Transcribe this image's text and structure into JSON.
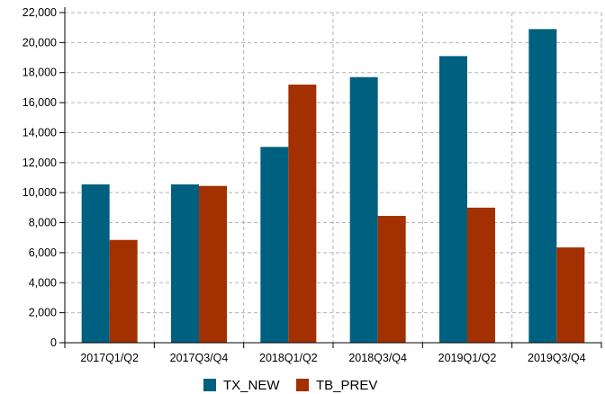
{
  "chart_data": {
    "type": "bar",
    "categories": [
      "2017Q1/Q2",
      "2017Q3/Q4",
      "2018Q1/Q2",
      "2018Q3/Q4",
      "2019Q1/Q2",
      "2019Q3/Q4"
    ],
    "series": [
      {
        "name": "TX_NEW",
        "color": "#00607f",
        "values": [
          10550,
          10550,
          13050,
          17700,
          19100,
          20900
        ]
      },
      {
        "name": "TB_PREV",
        "color": "#a33000",
        "values": [
          6850,
          10450,
          17200,
          8450,
          9000,
          6350
        ]
      }
    ],
    "ylim": [
      0,
      22000
    ],
    "yticks": [
      "0",
      "2,000",
      "4,000",
      "6,000",
      "8,000",
      "10,000",
      "12,000",
      "14,000",
      "16,000",
      "18,000",
      "20,000",
      "22,000"
    ],
    "grid": true,
    "grid_style": "dashed",
    "legend_position": "bottom"
  }
}
